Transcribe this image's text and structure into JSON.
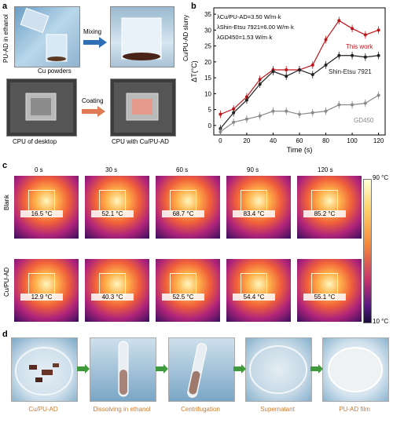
{
  "panels": {
    "a": "a",
    "b": "b",
    "c": "c",
    "d": "d"
  },
  "panel_a": {
    "pu_ad_label": "PU-AD in ethanol",
    "cu_powders": "Cu powders",
    "mixing": "Mixing",
    "slurry": "Cu/PU-AD slurry",
    "coating": "Coating",
    "cpu_desktop": "CPU of desktop",
    "cpu_coated": "CPU with Cu/PU-AD"
  },
  "chart_data": {
    "type": "line",
    "xlabel": "Time (s)",
    "ylabel": "ΔT(°C)",
    "xlim": [
      -5,
      125
    ],
    "ylim": [
      -3,
      37
    ],
    "xticks": [
      0,
      20,
      40,
      60,
      80,
      100,
      120
    ],
    "yticks": [
      0,
      5,
      10,
      15,
      20,
      25,
      30,
      35
    ],
    "x": [
      0,
      10,
      20,
      30,
      40,
      50,
      60,
      70,
      80,
      90,
      100,
      110,
      120
    ],
    "annotations": [
      "λCu/PU-AD=3.50 W/m·k",
      "λShin-Etsu 7921=6.00 W/m·k",
      "λGD450=1.53 W/m·k"
    ],
    "series": [
      {
        "name": "This work",
        "color": "#c0151b",
        "values": [
          3.5,
          5.2,
          9.0,
          14.5,
          17.5,
          17.5,
          17.5,
          19.0,
          27.0,
          33.0,
          30.5,
          28.5,
          30.0
        ]
      },
      {
        "name": "Shin-Etsu 7921",
        "color": "#222222",
        "values": [
          -1.0,
          4.0,
          8.0,
          13.0,
          17.0,
          15.5,
          17.5,
          16.0,
          19.0,
          22.0,
          22.0,
          21.5,
          22.0
        ]
      },
      {
        "name": "GD450",
        "color": "#8a8a8a",
        "values": [
          -2.0,
          1.0,
          2.0,
          3.0,
          4.5,
          4.5,
          3.5,
          4.0,
          4.5,
          6.5,
          6.5,
          7.0,
          9.5
        ]
      }
    ]
  },
  "panel_c": {
    "times": [
      "0 s",
      "30 s",
      "60 s",
      "90 s",
      "120 s"
    ],
    "row_blank": "Blank",
    "row_cu": "Cu/PU-AD",
    "blank_values": [
      "16.5 °C",
      "52.1 °C",
      "68.7 °C",
      "83.4 °C",
      "85.2 °C"
    ],
    "cu_values": [
      "12.9 °C",
      "40.3 °C",
      "52.5 °C",
      "54.4 °C",
      "55.1 °C"
    ],
    "scale_max": "90 °C",
    "scale_min": "10 °C"
  },
  "panel_d": {
    "captions": [
      "Cu/PU-AD",
      "Dissolving in ethanol",
      "Centrifugation",
      "Supernatant",
      "PU-AD film"
    ]
  }
}
